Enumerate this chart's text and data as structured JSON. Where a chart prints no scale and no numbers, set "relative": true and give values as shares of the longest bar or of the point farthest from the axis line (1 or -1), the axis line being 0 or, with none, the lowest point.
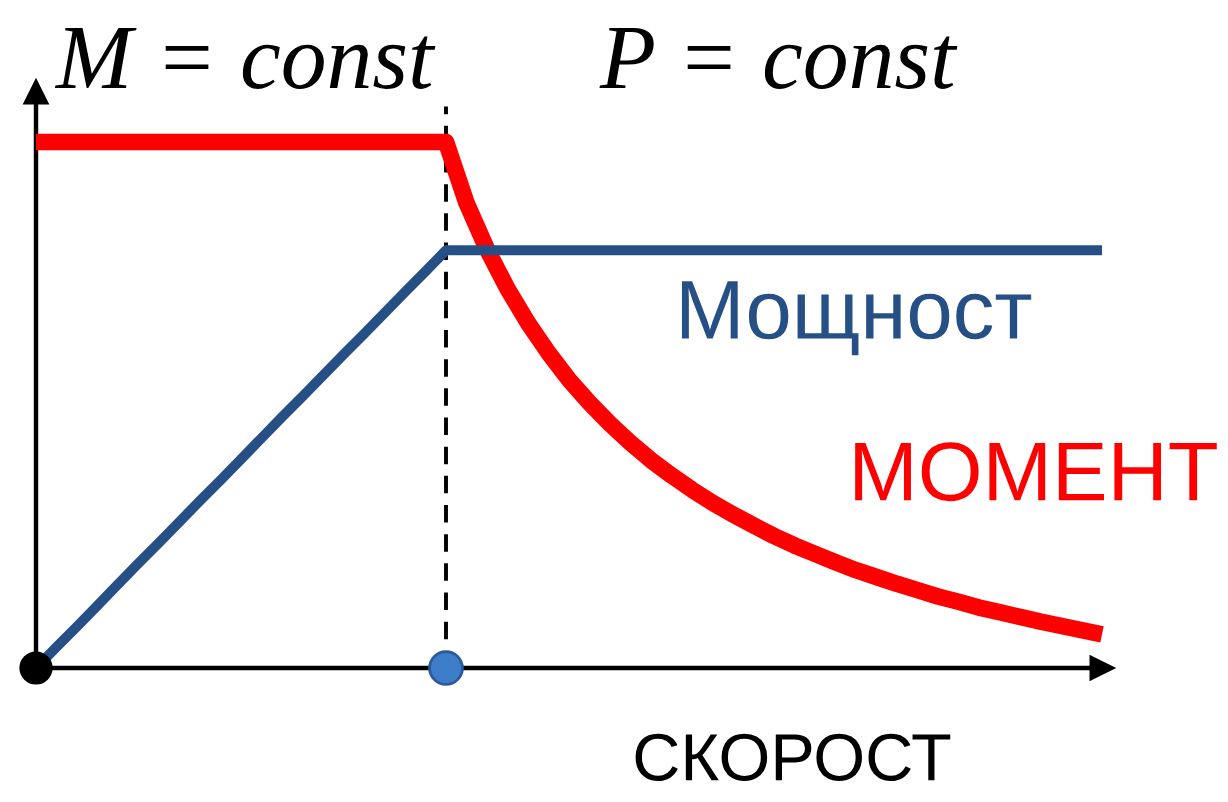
{
  "chart_data": {
    "type": "line",
    "relative": true,
    "xlabel": "СКОРОСТ",
    "annotations": [
      "M = const",
      "P = const"
    ],
    "categories": [
      null,
      null,
      null,
      null,
      null,
      null,
      null,
      null,
      null,
      null,
      null,
      null,
      null,
      null,
      null,
      null,
      null,
      null,
      null,
      null,
      null,
      null,
      null,
      null,
      null,
      null,
      null,
      null,
      null,
      null,
      null,
      null,
      null,
      null,
      null,
      null,
      null,
      null,
      null,
      null,
      null,
      null,
      null,
      null,
      null,
      null,
      null,
      null,
      null,
      null,
      null,
      null,
      null
    ],
    "series": [
      {
        "name": "МОМЕНТ",
        "color": "#ff0000",
        "values": [
          1,
          1,
          1,
          1,
          1,
          1,
          1,
          1,
          1,
          1,
          1,
          1,
          1,
          1,
          1,
          1,
          1,
          1,
          1,
          1,
          1,
          0.884,
          0.796,
          0.721,
          0.656,
          0.599,
          0.548,
          0.504,
          0.464,
          0.428,
          0.395,
          0.366,
          0.339,
          0.314,
          0.292,
          0.271,
          0.251,
          0.233,
          0.217,
          0.201,
          0.186,
          0.173,
          0.16,
          0.148,
          0.136,
          0.126,
          0.115,
          0.106,
          0.097,
          0.088,
          0.08,
          0.072,
          0.064
        ]
      },
      {
        "name": "Мощност",
        "color": "#264f86",
        "values": [
          0,
          0.04,
          0.079,
          0.119,
          0.159,
          0.199,
          0.238,
          0.278,
          0.318,
          0.357,
          0.397,
          0.437,
          0.477,
          0.516,
          0.556,
          0.596,
          0.635,
          0.675,
          0.715,
          0.754,
          0.794,
          0.794,
          0.794,
          0.794,
          0.794,
          0.794,
          0.794,
          0.794,
          0.794,
          0.794,
          0.794,
          0.794,
          0.794,
          0.794,
          0.794,
          0.794,
          0.794,
          0.794,
          0.794,
          0.794,
          0.794,
          0.794,
          0.794,
          0.794,
          0.794,
          0.794,
          0.794,
          0.794,
          0.794,
          0.794,
          0.794,
          0.794,
          0.794
        ]
      }
    ],
    "line_style": "solid",
    "marker": "none",
    "legend": false,
    "grid": false
  }
}
